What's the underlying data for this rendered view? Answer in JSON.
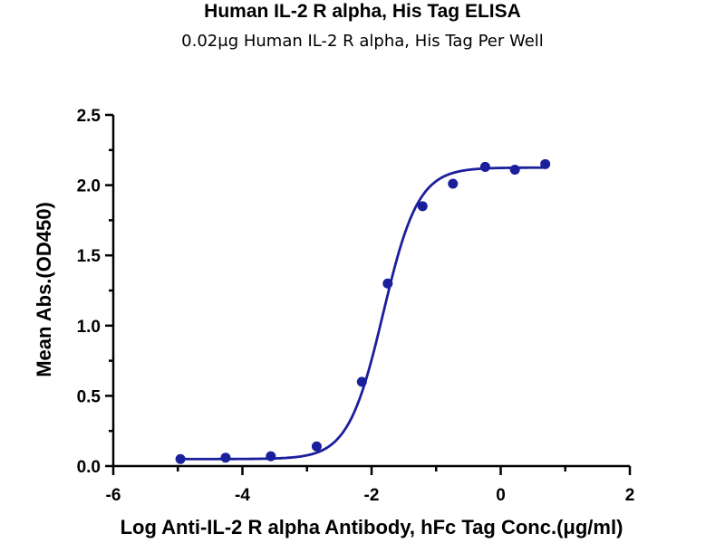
{
  "chart_data": {
    "type": "scatter",
    "title": "Human IL-2 R alpha, His Tag ELISA",
    "subtitle": "0.02μg Human IL-2 R alpha, His Tag Per Well",
    "xlabel": "Log Anti-IL-2 R alpha Antibody, hFc Tag Conc.(μg/ml)",
    "ylabel": "Mean Abs.(OD450)",
    "xlim": [
      -6,
      2
    ],
    "ylim": [
      0,
      2.5
    ],
    "x_ticks": [
      -6,
      -4,
      -2,
      0,
      2
    ],
    "x_tick_labels": [
      "-6",
      "-4",
      "-2",
      "0",
      "2"
    ],
    "y_ticks": [
      0,
      0.5,
      1.0,
      1.5,
      2.0,
      2.5
    ],
    "y_tick_labels": [
      "0.0",
      "0.5",
      "1.0",
      "1.5",
      "2.0",
      "2.5"
    ],
    "grid": false,
    "legend": "none",
    "color": "#1a1f9c",
    "series": [
      {
        "x": [
          -4.96,
          -4.26,
          -3.56,
          -2.85,
          -2.15,
          -1.75,
          -1.21,
          -0.74,
          -0.24,
          0.22,
          0.69
        ],
        "y": [
          0.05,
          0.06,
          0.07,
          0.14,
          0.6,
          1.3,
          1.85,
          2.01,
          2.13,
          2.11,
          2.15
        ],
        "fit": {
          "model": "4PL",
          "bottom": 0.05,
          "top": 2.125,
          "log_ec50": -1.82,
          "hill": 1.6
        }
      }
    ]
  }
}
